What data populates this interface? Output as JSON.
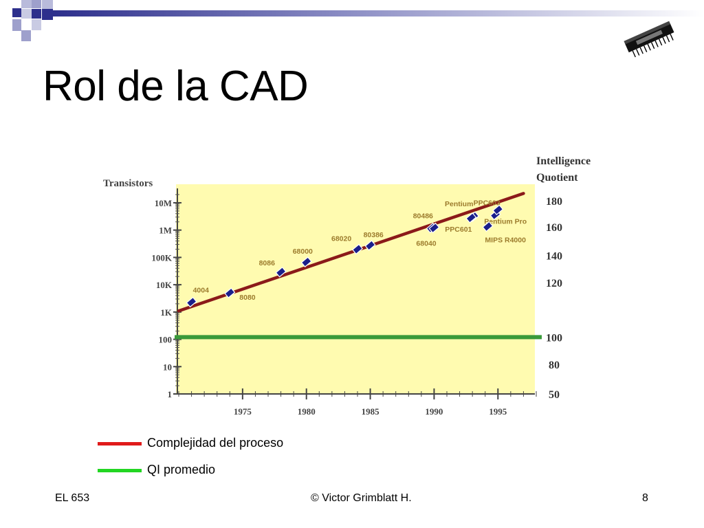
{
  "slide": {
    "title": "Rol de la CAD",
    "footer_left": "EL 653",
    "footer_center": "© Victor Grimblatt H.",
    "footer_right": "8"
  },
  "theme": {
    "accent_navy": "#2d2f8c",
    "accent_lavender": "#9ea0cc",
    "plot_background": "#fffbb0",
    "trend_color": "#8b1a1a",
    "average_color": "#3a9a3a",
    "marker_color": "#1a1f8a",
    "label_color": "#9c7b2c"
  },
  "icons": {
    "chip": "microchip-icon"
  },
  "legend": [
    {
      "label": "Complejidad del proceso",
      "color": "#e01b1b"
    },
    {
      "label": "QI promedio",
      "color": "#22d622"
    }
  ],
  "chart_data": {
    "type": "scatter",
    "title": "",
    "xlabel": "",
    "ylabel": "Transistors",
    "y2label": [
      "Intelligence",
      "Quotient"
    ],
    "y_scale": "log",
    "xlim": [
      1970,
      1998
    ],
    "ylim": [
      1,
      20000000
    ],
    "x_ticks": [
      1975,
      1980,
      1985,
      1990,
      1995
    ],
    "y_ticks": [
      {
        "value": 1,
        "label": "1"
      },
      {
        "value": 10,
        "label": "10"
      },
      {
        "value": 100,
        "label": "100"
      },
      {
        "value": 1000,
        "label": "1K"
      },
      {
        "value": 10000,
        "label": "10K"
      },
      {
        "value": 100000,
        "label": "100K"
      },
      {
        "value": 1000000,
        "label": "1M"
      },
      {
        "value": 10000000,
        "label": "10M"
      }
    ],
    "y2_ticks": [
      {
        "value": 50,
        "y_equiv": 1,
        "label": "50"
      },
      {
        "value": 80,
        "y_equiv": 12,
        "label": "80"
      },
      {
        "value": 100,
        "y_equiv": 120,
        "label": "100"
      },
      {
        "value": 120,
        "y_equiv": 12000,
        "label": "120"
      },
      {
        "value": 140,
        "y_equiv": 120000,
        "label": "140"
      },
      {
        "value": 160,
        "y_equiv": 1300000,
        "label": "160"
      },
      {
        "value": 180,
        "y_equiv": 12000000,
        "label": "180"
      }
    ],
    "series": [
      {
        "points": [
          {
            "label": "4004",
            "x": 1971,
            "y": 2300
          },
          {
            "label": "8080",
            "x": 1974,
            "y": 5000
          },
          {
            "label": "8086",
            "x": 1978,
            "y": 29000
          },
          {
            "label": "68000",
            "x": 1980,
            "y": 68000
          },
          {
            "label": "68020",
            "x": 1984,
            "y": 200000
          },
          {
            "label": "80386",
            "x": 1985,
            "y": 275000
          },
          {
            "label": "80486",
            "x": 1989.8,
            "y": 1200000
          },
          {
            "label": "68040",
            "x": 1990,
            "y": 1200000
          },
          {
            "label": "Pentium",
            "x": 1993.1,
            "y": 3100000
          },
          {
            "label": "PPC601",
            "x": 1992.9,
            "y": 2800000
          },
          {
            "label": "PPC603",
            "x": 1994.8,
            "y": 3600000
          },
          {
            "label": "Pentium Pro",
            "x": 1995,
            "y": 5500000
          },
          {
            "label": "MIPS R4000",
            "x": 1994.2,
            "y": 1350000
          }
        ]
      }
    ],
    "trend_line": [
      {
        "x": 1970,
        "y": 1100
      },
      {
        "x": 1997,
        "y": 22000000
      }
    ],
    "average_line": {
      "y": 120
    },
    "grid": false
  }
}
